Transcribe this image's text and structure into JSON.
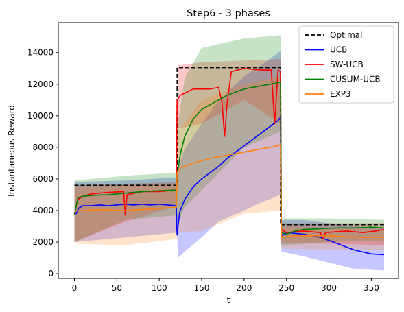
{
  "chart_data": {
    "type": "line",
    "title": "Step6 - 3 phases",
    "xlabel": "t",
    "ylabel": "Instantaneous Reward",
    "xlim": [
      -19,
      382
    ],
    "ylim": [
      -300,
      15900
    ],
    "xticks": [
      0,
      50,
      100,
      150,
      200,
      250,
      300,
      350
    ],
    "yticks": [
      0,
      2000,
      4000,
      6000,
      8000,
      10000,
      12000,
      14000
    ],
    "grid": false,
    "legend_position": "top-right",
    "series": [
      {
        "name": "Optimal",
        "color": "#000000",
        "dash": true,
        "points": [
          [
            0,
            5600
          ],
          [
            121,
            5600
          ],
          [
            121,
            13050
          ],
          [
            243,
            13050
          ],
          [
            243,
            3100
          ],
          [
            365,
            3100
          ]
        ]
      },
      {
        "name": "UCB",
        "color": "#0000ff",
        "points": [
          [
            0,
            3900
          ],
          [
            2,
            3800
          ],
          [
            5,
            4150
          ],
          [
            10,
            4300
          ],
          [
            20,
            4300
          ],
          [
            30,
            4350
          ],
          [
            40,
            4300
          ],
          [
            50,
            4350
          ],
          [
            60,
            4400
          ],
          [
            70,
            4350
          ],
          [
            80,
            4400
          ],
          [
            90,
            4350
          ],
          [
            100,
            4400
          ],
          [
            110,
            4350
          ],
          [
            120,
            4300
          ],
          [
            121,
            2450
          ],
          [
            124,
            3900
          ],
          [
            130,
            4700
          ],
          [
            140,
            5500
          ],
          [
            150,
            6000
          ],
          [
            160,
            6400
          ],
          [
            170,
            6800
          ],
          [
            180,
            7300
          ],
          [
            190,
            7700
          ],
          [
            200,
            8100
          ],
          [
            210,
            8500
          ],
          [
            220,
            8900
          ],
          [
            230,
            9300
          ],
          [
            240,
            9700
          ],
          [
            243,
            9900
          ],
          [
            244,
            2400
          ],
          [
            250,
            2600
          ],
          [
            270,
            2500
          ],
          [
            290,
            2300
          ],
          [
            310,
            1900
          ],
          [
            330,
            1500
          ],
          [
            350,
            1250
          ],
          [
            365,
            1200
          ]
        ],
        "band": [
          [
            0,
            2000,
            5800
          ],
          [
            60,
            2300,
            5900
          ],
          [
            121,
            2600,
            6100
          ],
          [
            122,
            1000,
            6700
          ],
          [
            130,
            1400,
            7900
          ],
          [
            150,
            2300,
            9500
          ],
          [
            170,
            3300,
            11000
          ],
          [
            200,
            4000,
            12500
          ],
          [
            220,
            4500,
            13200
          ],
          [
            243,
            5000,
            14100
          ],
          [
            244,
            1400,
            3400
          ],
          [
            270,
            1100,
            3400
          ],
          [
            300,
            700,
            3200
          ],
          [
            330,
            300,
            3000
          ],
          [
            365,
            200,
            2900
          ]
        ]
      },
      {
        "name": "SW-UCB",
        "color": "#ff0000",
        "points": [
          [
            0,
            3800
          ],
          [
            4,
            4700
          ],
          [
            10,
            4900
          ],
          [
            20,
            5050
          ],
          [
            40,
            5150
          ],
          [
            58,
            5200
          ],
          [
            60,
            3700
          ],
          [
            62,
            5000
          ],
          [
            80,
            5200
          ],
          [
            100,
            5200
          ],
          [
            120,
            5300
          ],
          [
            121,
            11000
          ],
          [
            125,
            11300
          ],
          [
            140,
            11700
          ],
          [
            160,
            11700
          ],
          [
            170,
            11800
          ],
          [
            174,
            10800
          ],
          [
            177,
            8700
          ],
          [
            180,
            10800
          ],
          [
            185,
            12800
          ],
          [
            200,
            13000
          ],
          [
            220,
            12900
          ],
          [
            232,
            12900
          ],
          [
            236,
            9500
          ],
          [
            240,
            12900
          ],
          [
            243,
            12800
          ],
          [
            244,
            2800
          ],
          [
            250,
            2600
          ],
          [
            270,
            2700
          ],
          [
            290,
            2600
          ],
          [
            293,
            2200
          ],
          [
            296,
            2600
          ],
          [
            320,
            2700
          ],
          [
            340,
            2600
          ],
          [
            355,
            2700
          ],
          [
            365,
            2800
          ]
        ],
        "band": [
          [
            0,
            2000,
            5600
          ],
          [
            60,
            3300,
            5700
          ],
          [
            121,
            4300,
            5800
          ],
          [
            122,
            9200,
            13200
          ],
          [
            150,
            9500,
            13400
          ],
          [
            200,
            11000,
            13500
          ],
          [
            243,
            9500,
            13600
          ],
          [
            244,
            1900,
            3200
          ],
          [
            300,
            1900,
            3200
          ],
          [
            365,
            1800,
            3200
          ]
        ]
      },
      {
        "name": "CUSUM-UCB",
        "color": "#008000",
        "points": [
          [
            0,
            3700
          ],
          [
            4,
            4800
          ],
          [
            10,
            4900
          ],
          [
            20,
            4950
          ],
          [
            40,
            5000
          ],
          [
            60,
            5100
          ],
          [
            80,
            5200
          ],
          [
            100,
            5250
          ],
          [
            120,
            5300
          ],
          [
            121,
            6300
          ],
          [
            125,
            7600
          ],
          [
            130,
            8700
          ],
          [
            140,
            9800
          ],
          [
            150,
            10400
          ],
          [
            160,
            10700
          ],
          [
            170,
            11000
          ],
          [
            180,
            11300
          ],
          [
            190,
            11500
          ],
          [
            200,
            11700
          ],
          [
            210,
            11800
          ],
          [
            220,
            11900
          ],
          [
            230,
            12000
          ],
          [
            240,
            12100
          ],
          [
            243,
            12100
          ],
          [
            244,
            2600
          ],
          [
            250,
            2500
          ],
          [
            260,
            2700
          ],
          [
            270,
            2800
          ],
          [
            290,
            2850
          ],
          [
            310,
            2900
          ],
          [
            330,
            2900
          ],
          [
            350,
            2950
          ],
          [
            365,
            2900
          ]
        ],
        "band": [
          [
            0,
            2000,
            5900
          ],
          [
            60,
            3400,
            6200
          ],
          [
            121,
            3700,
            6400
          ],
          [
            122,
            3200,
            9500
          ],
          [
            130,
            4200,
            12400
          ],
          [
            150,
            5300,
            14300
          ],
          [
            200,
            8000,
            14900
          ],
          [
            243,
            9000,
            15100
          ],
          [
            244,
            1800,
            3500
          ],
          [
            300,
            2000,
            3500
          ],
          [
            365,
            2100,
            3400
          ]
        ]
      },
      {
        "name": "EXP3",
        "color": "#ff7f0e",
        "points": [
          [
            0,
            3950
          ],
          [
            10,
            4000
          ],
          [
            30,
            4050
          ],
          [
            60,
            4000
          ],
          [
            90,
            4100
          ],
          [
            120,
            4200
          ],
          [
            121,
            6400
          ],
          [
            125,
            6700
          ],
          [
            140,
            7000
          ],
          [
            160,
            7300
          ],
          [
            180,
            7500
          ],
          [
            200,
            7700
          ],
          [
            220,
            7900
          ],
          [
            240,
            8100
          ],
          [
            243,
            8200
          ],
          [
            244,
            2300
          ],
          [
            260,
            2400
          ],
          [
            280,
            2400
          ],
          [
            300,
            2400
          ],
          [
            320,
            2350
          ],
          [
            340,
            2300
          ],
          [
            365,
            2300
          ]
        ],
        "band": [
          [
            0,
            1900,
            5500
          ],
          [
            60,
            1800,
            5600
          ],
          [
            121,
            2200,
            5700
          ],
          [
            122,
            2600,
            9000
          ],
          [
            150,
            2700,
            11000
          ],
          [
            200,
            3800,
            12000
          ],
          [
            243,
            4000,
            12500
          ],
          [
            244,
            1600,
            3000
          ],
          [
            300,
            1500,
            2900
          ],
          [
            365,
            1500,
            2800
          ]
        ]
      }
    ]
  }
}
